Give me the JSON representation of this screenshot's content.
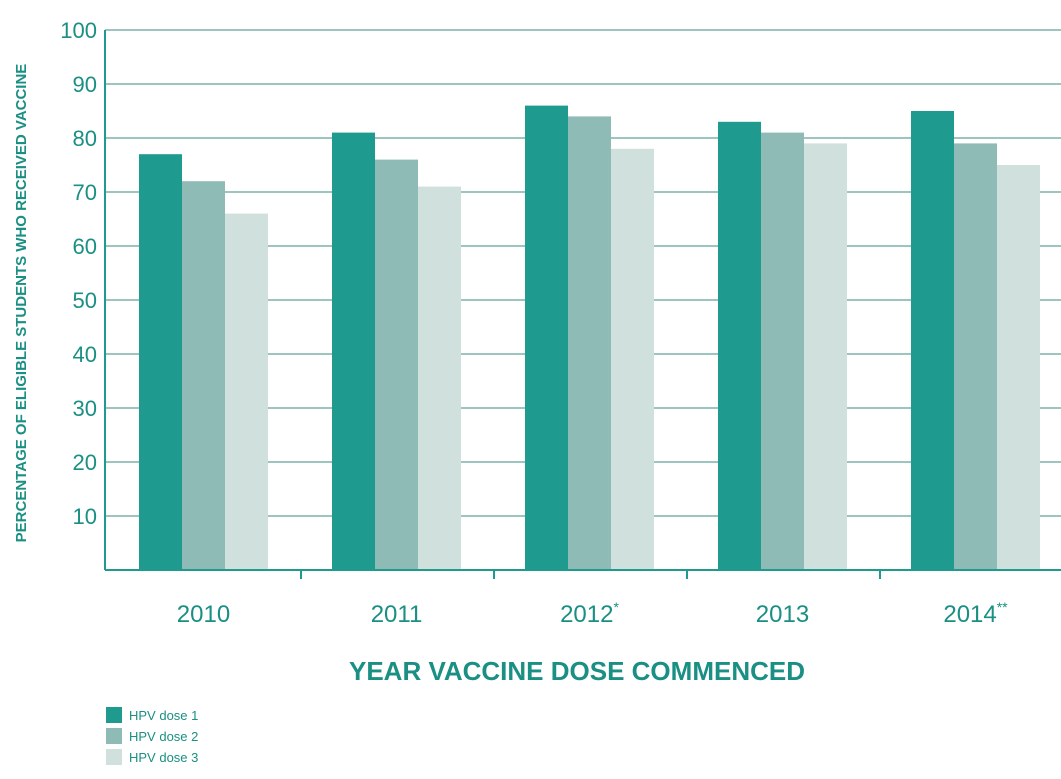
{
  "chart_data": {
    "type": "bar",
    "categories": [
      "2010",
      "2011",
      "2012*",
      "2013",
      "2014**"
    ],
    "series": [
      {
        "name": "HPV dose 1",
        "color": "#1e9a8e",
        "values": [
          77,
          81,
          86,
          83,
          85
        ]
      },
      {
        "name": "HPV dose 2",
        "color": "#8fbbb6",
        "values": [
          72,
          76,
          84,
          81,
          79
        ]
      },
      {
        "name": "HPV dose 3",
        "color": "#cfe0dd",
        "values": [
          66,
          71,
          78,
          79,
          75
        ]
      }
    ],
    "yticks": [
      10,
      20,
      30,
      40,
      50,
      60,
      70,
      80,
      90,
      100
    ],
    "ylim": [
      0,
      100
    ],
    "xlabel": "YEAR VACCINE DOSE COMMENCED",
    "ylabel": "PERCENTAGE OF ELIGIBLE STUDENTS WHO RECEIVED VACCINE",
    "grid": true,
    "legend_position": "bottom-left",
    "axis_color": "#1e9a8e",
    "grid_color": "#9cc5bf"
  }
}
